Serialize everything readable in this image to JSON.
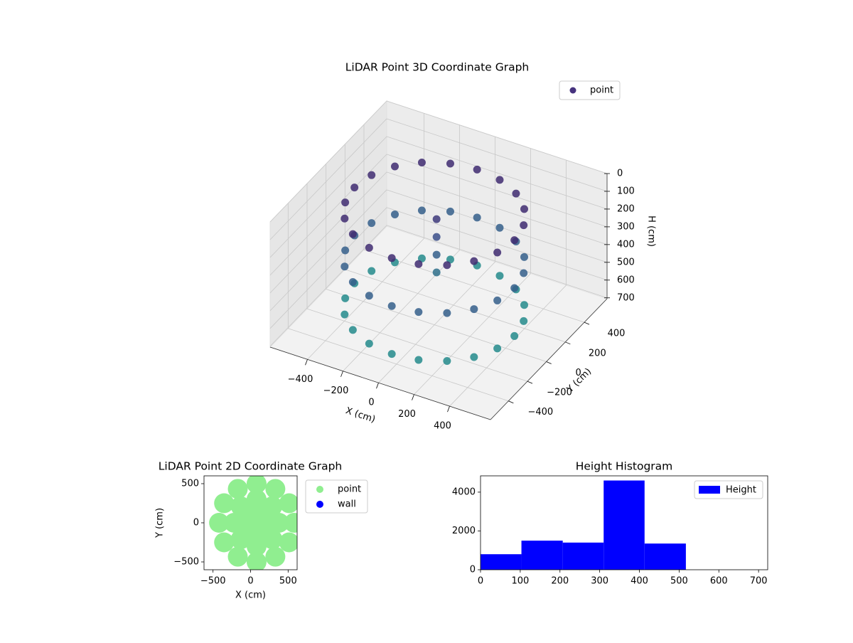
{
  "chart_data": [
    {
      "type": "scatter3d",
      "title": "LiDAR Point 3D Coordinate Graph",
      "xlabel": "X (cm)",
      "ylabel": "Y (cm)",
      "zlabel": "H (cm)",
      "xlim": [
        -610,
        630
      ],
      "ylim": [
        -590,
        640
      ],
      "zlim": [
        705,
        0
      ],
      "xticks": [
        {
          "value": -400,
          "label": "−400"
        },
        {
          "value": -200,
          "label": "−200"
        },
        0,
        200,
        400
      ],
      "yticks": [
        {
          "value": -400,
          "label": "−400"
        },
        {
          "value": -200,
          "label": "−200"
        },
        0,
        200,
        400
      ],
      "zticks": [
        0,
        100,
        200,
        300,
        400,
        500,
        600,
        700
      ],
      "colormap": "viridis",
      "legend": "upper right",
      "grid": true,
      "series": [
        {
          "name": "point",
          "color": "#46327e",
          "x": [
            450,
            428,
            364,
            265,
            139,
            0,
            -139,
            -265,
            -364,
            -428,
            -450,
            -428,
            -364,
            -265,
            -139,
            0,
            139,
            265,
            364,
            428,
            450,
            428,
            364,
            265,
            139,
            0,
            -139,
            -265,
            -364,
            -428,
            -450,
            -428,
            -364,
            -265,
            -139,
            0,
            139,
            265,
            364,
            428,
            450,
            428,
            364,
            265,
            139,
            0,
            -139,
            -265,
            -364,
            -428,
            -450,
            -428,
            -364,
            -265,
            -139,
            0,
            139,
            265,
            364,
            428,
            -20,
            -20,
            -20,
            -20
          ],
          "y": [
            0,
            139,
            265,
            364,
            428,
            450,
            428,
            364,
            265,
            139,
            0,
            -139,
            -265,
            -364,
            -428,
            -450,
            -428,
            -364,
            -265,
            -139,
            0,
            139,
            265,
            364,
            428,
            450,
            428,
            364,
            265,
            139,
            0,
            -139,
            -265,
            -364,
            -428,
            -450,
            -428,
            -364,
            -265,
            -139,
            0,
            139,
            265,
            364,
            428,
            450,
            428,
            364,
            265,
            139,
            0,
            -139,
            -265,
            -364,
            -428,
            -450,
            -428,
            -364,
            -265,
            -139,
            60,
            60,
            60,
            60
          ],
          "h": [
            80,
            80,
            80,
            80,
            80,
            80,
            80,
            80,
            80,
            80,
            80,
            80,
            80,
            80,
            80,
            80,
            80,
            80,
            80,
            80,
            350,
            350,
            350,
            350,
            350,
            350,
            350,
            350,
            350,
            350,
            350,
            350,
            350,
            350,
            350,
            350,
            350,
            350,
            350,
            350,
            620,
            620,
            620,
            620,
            620,
            620,
            620,
            620,
            620,
            620,
            620,
            620,
            620,
            620,
            620,
            620,
            620,
            620,
            620,
            620,
            150,
            250,
            350,
            450
          ]
        }
      ]
    },
    {
      "type": "scatter",
      "title": "LiDAR Point 2D Coordinate Graph",
      "xlabel": "X (cm)",
      "ylabel": "Y (cm)",
      "xlim": [
        -620,
        620
      ],
      "ylim": [
        -600,
        600
      ],
      "xticks": [
        {
          "value": -500,
          "label": "−500"
        },
        0,
        500
      ],
      "yticks": [
        {
          "value": -500,
          "label": "−500"
        },
        0,
        500
      ],
      "legend": "outside upper right",
      "series": [
        {
          "name": "point",
          "color": "#90ee90",
          "x": [
            580,
            513,
            330,
            80,
            -170,
            -353,
            -420,
            -353,
            -170,
            80,
            330,
            513,
            380,
            292,
            80,
            -132,
            -220,
            -132,
            80,
            292,
            230,
            80,
            -70,
            80,
            80
          ],
          "y": [
            0,
            250,
            433,
            500,
            433,
            250,
            0,
            -250,
            -433,
            -500,
            -433,
            -250,
            0,
            212,
            300,
            212,
            0,
            -212,
            -300,
            -212,
            0,
            150,
            0,
            -150,
            0
          ]
        },
        {
          "name": "wall",
          "color": "#0000ff",
          "x": [],
          "y": []
        }
      ]
    },
    {
      "type": "histogram",
      "title": "Height Histogram",
      "label": "Height",
      "color": "#0000ff",
      "legend": "upper right",
      "bins": [
        0,
        103,
        207,
        310,
        413,
        517,
        620,
        723
      ],
      "values": [
        800,
        1500,
        1400,
        4600,
        1350,
        0,
        0
      ],
      "xlim": [
        0,
        723
      ],
      "ylim": [
        0,
        4840
      ],
      "xticks": [
        0,
        100,
        200,
        300,
        400,
        500,
        600,
        700
      ],
      "yticks": [
        0,
        2000,
        4000
      ]
    }
  ]
}
